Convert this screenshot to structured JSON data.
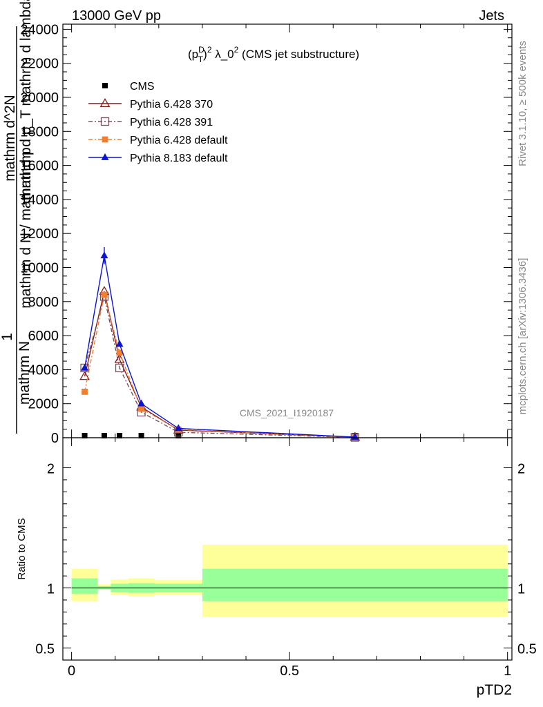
{
  "header": {
    "left": "13000 GeV pp",
    "right": "Jets"
  },
  "side_labels": {
    "rivet": "Rivet 3.1.10, ≥ 500k events",
    "mcplots": "mcplots.cern.ch [arXiv:1306.3436]"
  },
  "chart_data": [
    {
      "type": "line",
      "panel": "main",
      "title": "(p_T^D)^2 λ_0^2 (CMS jet substructure)",
      "title_parts": {
        "p": "(p",
        "sup_d": "D",
        "sub_t": "T",
        "close": ")",
        "sup2": "2",
        "mid": " λ_0",
        "sup2b": "2",
        "rest": " (CMS jet substructure)"
      },
      "ylabel_lines": [
        "1",
        "mathrm N",
        "mathrm d N / mathrm d p_T mathrm d lambda",
        "mathrm d p_T mathrm d lambda",
        "mathrm d^2N"
      ],
      "ylabel_numerator": "mathrm d^2N",
      "ylabel_fraction_top": "1",
      "ylabel_fraction_bottom": "mathrm N",
      "ylabel_mid": "mathrm d p_T mathrm d lambda",
      "ylabel_mathrmN": "mathrm d N / mathrm d p",
      "xlabel": "",
      "xlim": [
        -0.02,
        1.01
      ],
      "ylim": [
        0,
        24300
      ],
      "yticks": [
        0,
        2000,
        4000,
        6000,
        8000,
        10000,
        12000,
        14000,
        16000,
        18000,
        20000,
        22000,
        24000
      ],
      "ytick_labels": [
        "0",
        "2000",
        "4000",
        "6000",
        "8000",
        "10000",
        "12000",
        "14000",
        "16000",
        "18000",
        "20000",
        "22000",
        "24000"
      ],
      "watermark": "CMS_2021_I1920187",
      "legend_position": "top-left",
      "series": [
        {
          "name": "CMS",
          "color": "#000000",
          "marker": "square-filled",
          "line": "none",
          "x": [
            0.03,
            0.075,
            0.11,
            0.16,
            0.245,
            0.65
          ],
          "y": [
            0,
            0,
            0,
            0,
            0,
            0
          ]
        },
        {
          "name": "Pythia 6.428 370",
          "color": "#8b1a1a",
          "marker": "triangle-open",
          "line": "solid",
          "x": [
            0.03,
            0.075,
            0.11,
            0.16,
            0.245,
            0.65
          ],
          "y": [
            3600,
            8600,
            4600,
            1800,
            450,
            30
          ]
        },
        {
          "name": "Pythia 6.428 391",
          "color": "#7a5060",
          "marker": "square-open",
          "line": "dashdot",
          "x": [
            0.03,
            0.075,
            0.11,
            0.16,
            0.245,
            0.65
          ],
          "y": [
            4100,
            8300,
            4100,
            1500,
            320,
            20
          ]
        },
        {
          "name": "Pythia 6.428 default",
          "color": "#f08030",
          "marker": "square-filled",
          "line": "dashdot",
          "x": [
            0.03,
            0.075,
            0.11,
            0.16,
            0.245,
            0.65
          ],
          "y": [
            2700,
            8400,
            5000,
            1700,
            480,
            30
          ]
        },
        {
          "name": "Pythia 8.183 default",
          "color": "#0a14d2",
          "marker": "triangle-filled",
          "line": "solid",
          "x": [
            0.03,
            0.075,
            0.11,
            0.16,
            0.245,
            0.65
          ],
          "y": [
            4100,
            10700,
            5500,
            2000,
            550,
            40
          ]
        }
      ]
    },
    {
      "type": "area",
      "panel": "ratio",
      "xlabel": "pTD2",
      "ylabel": "Ratio to CMS",
      "xlim": [
        -0.02,
        1.01
      ],
      "ylim": [
        0.4,
        2.25
      ],
      "yticks": [
        0.5,
        1,
        2
      ],
      "ytick_labels": [
        "0.5",
        "1",
        "2"
      ],
      "xticks": [
        0,
        0.5,
        1
      ],
      "xtick_labels": [
        "0",
        "0.5",
        "1"
      ],
      "reference_line": 1,
      "bands": [
        {
          "name": "total uncertainty",
          "color": "#ffff99",
          "bins": [
            {
              "x0": 0.0,
              "x1": 0.06,
              "lo": 0.89,
              "hi": 1.16
            },
            {
              "x0": 0.06,
              "x1": 0.09,
              "lo": 0.985,
              "hi": 1.03
            },
            {
              "x0": 0.09,
              "x1": 0.13,
              "lo": 0.94,
              "hi": 1.07
            },
            {
              "x0": 0.13,
              "x1": 0.19,
              "lo": 0.93,
              "hi": 1.08
            },
            {
              "x0": 0.19,
              "x1": 0.3,
              "lo": 0.94,
              "hi": 1.065
            },
            {
              "x0": 0.3,
              "x1": 1.0,
              "lo": 0.76,
              "hi": 1.36
            }
          ]
        },
        {
          "name": "statistical uncertainty",
          "color": "#99ff99",
          "bins": [
            {
              "x0": 0.0,
              "x1": 0.06,
              "lo": 0.95,
              "hi": 1.08
            },
            {
              "x0": 0.06,
              "x1": 0.09,
              "lo": 0.99,
              "hi": 1.015
            },
            {
              "x0": 0.09,
              "x1": 0.13,
              "lo": 0.965,
              "hi": 1.035
            },
            {
              "x0": 0.13,
              "x1": 0.19,
              "lo": 0.96,
              "hi": 1.04
            },
            {
              "x0": 0.19,
              "x1": 0.3,
              "lo": 0.965,
              "hi": 1.035
            },
            {
              "x0": 0.3,
              "x1": 1.0,
              "lo": 0.89,
              "hi": 1.16
            }
          ]
        }
      ]
    }
  ]
}
